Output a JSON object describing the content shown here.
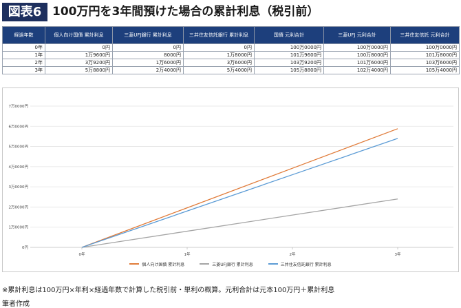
{
  "header": {
    "badge": "図表6",
    "title": "100万円を3年間預けた場合の累計利息（税引前）"
  },
  "table": {
    "headers": [
      "経過年数",
      "個人向け国債 累計利息",
      "三菱UFJ銀行 累計利息",
      "三井住友信託銀行 累計利息",
      "国債 元利合計",
      "三菱UFJ 元利合計",
      "三井住友信託 元利合計"
    ],
    "rows": [
      [
        "0年",
        "0円",
        "0円",
        "0円",
        "100万0000円",
        "100万0000円",
        "100万0000円"
      ],
      [
        "1年",
        "1万9600円",
        "8000円",
        "1万8000円",
        "101万9600円",
        "100万8000円",
        "101万8000円"
      ],
      [
        "2年",
        "3万9200円",
        "1万6000円",
        "3万6000円",
        "103万9200円",
        "101万6000円",
        "103万6000円"
      ],
      [
        "3年",
        "5万8800円",
        "2万4000円",
        "5万4000円",
        "105万8800円",
        "102万4000円",
        "105万4000円"
      ]
    ]
  },
  "chart_data": {
    "type": "line",
    "categories": [
      "0年",
      "1年",
      "2年",
      "3年"
    ],
    "series": [
      {
        "name": "個人向け国債 累計利息",
        "color": "#e07b39",
        "values": [
          0,
          19600,
          39200,
          58800
        ]
      },
      {
        "name": "三菱UFJ銀行 累計利息",
        "color": "#a5a5a5",
        "values": [
          0,
          8000,
          16000,
          24000
        ]
      },
      {
        "name": "三井住友信託銀行 累計利息",
        "color": "#5b9bd5",
        "values": [
          0,
          18000,
          36000,
          54000
        ]
      }
    ],
    "ylim": [
      0,
      70000
    ],
    "yticks": [
      0,
      10000,
      20000,
      30000,
      40000,
      50000,
      60000,
      70000
    ],
    "ytick_labels": [
      "0円",
      "1万0000円",
      "2万0000円",
      "3万0000円",
      "4万0000円",
      "5万0000円",
      "6万0000円",
      "7万0000円"
    ],
    "grid": true,
    "legend_position": "bottom"
  },
  "footer": {
    "note": "※累計利息は100万円×年利×経過年数で計算した税引前・単利の概算。元利合計は元本100万円＋累計利息",
    "credit": "筆者作成"
  }
}
